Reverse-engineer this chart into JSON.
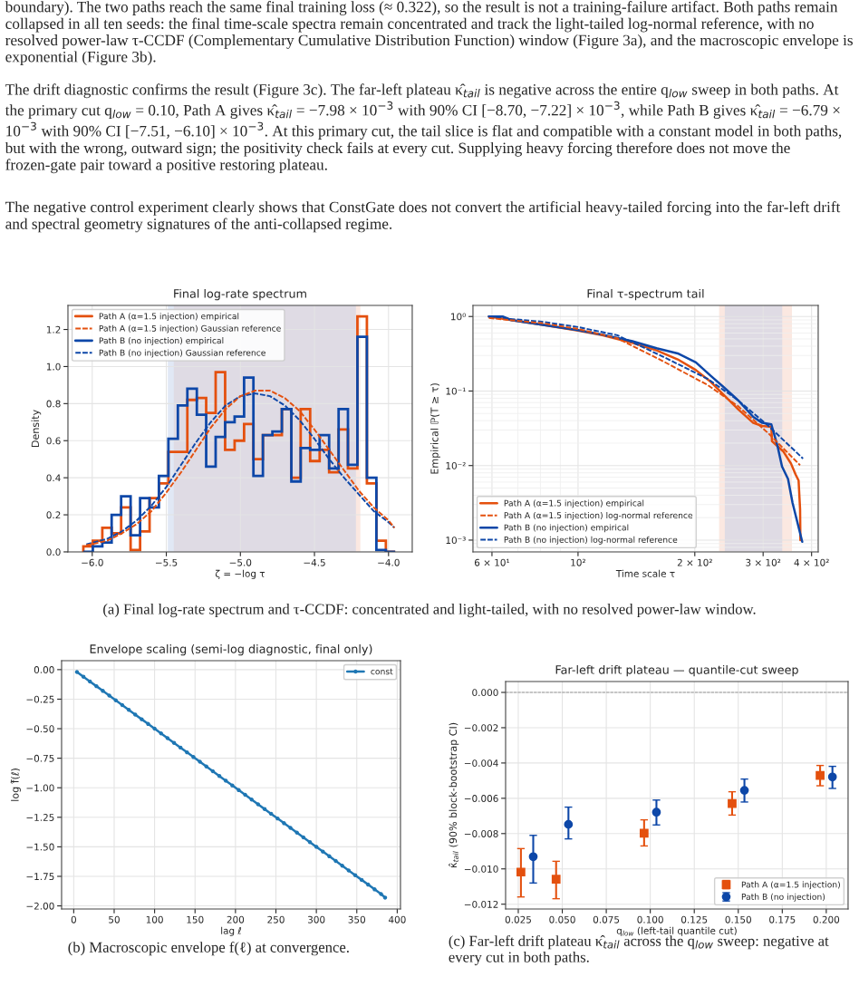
{
  "chart_data": [
    {
      "type": "histogram",
      "title": "Final log-rate spectrum",
      "xlabel": "ζ = −log τ",
      "ylabel": "Density",
      "bins": [
        -6.06,
        -5.996,
        -5.932,
        -5.869,
        -5.805,
        -5.741,
        -5.677,
        -5.613,
        -5.55,
        -5.486,
        -5.422,
        -5.358,
        -5.294,
        -5.231,
        -5.167,
        -5.103,
        -5.039,
        -4.975,
        -4.912,
        -4.848,
        -4.784,
        -4.72,
        -4.656,
        -4.593,
        -4.529,
        -4.465,
        -4.401,
        -4.337,
        -4.274,
        -4.21,
        -4.146,
        -4.082,
        -4.018,
        -3.955
      ],
      "series": [
        {
          "name": "Path A (α=1.5 injection) empirical",
          "color": "#e4500e",
          "values": [
            0.03,
            0.06,
            0.13,
            0.1,
            0.24,
            0.01,
            0.11,
            0.29,
            0.37,
            0.54,
            0.54,
            0.82,
            0.83,
            0.75,
            0.97,
            0.55,
            0.6,
            0.69,
            0.5,
            0.63,
            0.63,
            0.77,
            0.4,
            0.77,
            0.49,
            0.55,
            0.43,
            0.66,
            0.45,
            1.27,
            0.37,
            0.06,
            0
          ]
        },
        {
          "name": "Path A (α=1.5 injection) Gaussian reference",
          "type": "line",
          "line_style": "dashed",
          "color": "#e4500e",
          "x": [
            -6.04,
            -5.9,
            -5.8,
            -5.7,
            -5.6,
            -5.5,
            -5.4,
            -5.3,
            -5.2,
            -5.1,
            -5.0,
            -4.9,
            -4.8,
            -4.7,
            -4.6,
            -4.5,
            -4.4,
            -4.3,
            -4.2,
            -4.1,
            -4.0,
            -3.96
          ],
          "values": [
            0.035,
            0.06,
            0.1,
            0.15,
            0.22,
            0.32,
            0.43,
            0.55,
            0.67,
            0.77,
            0.84,
            0.87,
            0.87,
            0.83,
            0.76,
            0.66,
            0.55,
            0.44,
            0.33,
            0.24,
            0.17,
            0.13
          ]
        },
        {
          "name": "Path B (no injection) empirical",
          "color": "#0d47a8",
          "values": [
            0,
            0.03,
            0.05,
            0.2,
            0.3,
            0.09,
            0.29,
            0.24,
            0.41,
            0.61,
            0.79,
            0.88,
            0.74,
            0.46,
            0.62,
            0.7,
            0.73,
            0.94,
            0.41,
            0.63,
            0.65,
            0.77,
            0.38,
            0.56,
            0.55,
            0.63,
            0.45,
            0.77,
            0.47,
            1.16,
            0.4,
            0.01,
            0
          ]
        },
        {
          "name": "Path B (no injection) Gaussian reference",
          "type": "line",
          "line_style": "dashed",
          "color": "#0d47a8",
          "x": [
            -6.04,
            -5.9,
            -5.8,
            -5.7,
            -5.6,
            -5.5,
            -5.4,
            -5.3,
            -5.2,
            -5.1,
            -5.0,
            -4.9,
            -4.8,
            -4.7,
            -4.6,
            -4.5,
            -4.4,
            -4.3,
            -4.2,
            -4.1,
            -4.0,
            -3.96
          ],
          "values": [
            0.04,
            0.07,
            0.11,
            0.17,
            0.25,
            0.35,
            0.47,
            0.59,
            0.7,
            0.79,
            0.84,
            0.855,
            0.84,
            0.79,
            0.71,
            0.61,
            0.5,
            0.4,
            0.31,
            0.22,
            0.16,
            0.13
          ]
        }
      ],
      "bands": [
        {
          "axis": "x",
          "from": -5.45,
          "to": -4.19,
          "color": "#f6cdbd"
        },
        {
          "axis": "x",
          "from": -5.49,
          "to": -4.22,
          "color": "#bccbe8"
        }
      ],
      "xlim": [
        -6.164,
        -3.84
      ],
      "ylim": [
        0,
        1.33
      ],
      "xticks": [
        {
          "value": -6.0,
          "label": "−6.0"
        },
        {
          "value": -5.5,
          "label": "−5.5"
        },
        {
          "value": -5.0,
          "label": "−5.0"
        },
        {
          "value": -4.5,
          "label": "−4.5"
        },
        {
          "value": -4.0,
          "label": "−4.0"
        }
      ],
      "yticks": [
        {
          "value": 0,
          "label": "0.0"
        },
        0.2,
        0.4,
        0.6,
        0.8,
        {
          "value": 1,
          "label": "1.0"
        },
        1.2
      ],
      "grid": true,
      "legend": "top left",
      "annotations": [
        "boundary). The two paths reach the same final training loss (≈ 0.322), so the result is not a training-failure artifact. Both paths remain collapsed in all ten seeds: the final time-scale spectra remain concentrated and track the light-tailed log-normal reference, with no resolved power-law τ-CCDF (Complementary Cumulative Distribution Function) window (Figure 3a), and the macroscopic envelope is exponential (Figure 3b).",
        "The drift diagnostic confirms the result (Figure 3c). The far-left plateau κ̂$_{tail}$ is negative across the entire q$_{low}$ sweep in both paths. At the primary cut q$_{low}$ = 0.10, Path A gives κ̂$_{tail}$ = −7.98 × 10$^{−3}$ with 90% CI [−8.70, −7.22] × 10$^{−3}$, while Path B gives κ̂$_{tail}$ = −6.79 × 10$^{−3}$ with 90% CI [−7.51, −6.10] × 10$^{−3}$. At this primary cut, the tail slice is flat and compatible with a constant model in both paths, but with the wrong, outward sign; the positivity check fails at every cut. Supplying heavy forcing therefore does not move the frozen-gate pair toward a positive restoring plateau.",
        "The negative control experiment clearly shows that ConstGate does not convert the artificial heavy-tailed forcing into the far-left drift and spectral geometry signatures of the anti-collapsed regime.",
        "(a) Final log-rate spectrum and τ-CCDF: concentrated and light-tailed, with no resolved power-law window."
      ]
    },
    {
      "type": "line",
      "title": "Final τ-spectrum tail",
      "xlabel": "Time scale τ",
      "ylabel": "Empirical ℙ(T ≥ τ)",
      "log": "xy",
      "series": [
        {
          "name": "Path A (α=1.5 injection) empirical",
          "color": "#e4500e",
          "line_style": "solid",
          "x": [
            58.9,
            67.4,
            80.6,
            100,
            115.4,
            138.1,
            159.4,
            180.7,
            201.3,
            220.1,
            236.4,
            258.7,
            282.9,
            298.5,
            315,
            316.2,
            338.5,
            354.1,
            363.7,
            370.3,
            373.6,
            374.3
          ],
          "values": [
            1.0,
            0.894,
            0.777,
            0.645,
            0.561,
            0.444,
            0.351,
            0.266,
            0.191,
            0.132,
            0.0907,
            0.0569,
            0.0374,
            0.034,
            0.0331,
            0.0213,
            0.0154,
            0.0106,
            0.0076,
            0.0063,
            0.0026,
            0.001
          ]
        },
        {
          "name": "Path A (α=1.5 injection) log-normal reference",
          "color": "#e4500e",
          "line_style": "dashed",
          "x": [
            58.9,
            80.6,
            100,
            126.2,
            165.2,
            216.1,
            258.7,
            309.7,
            373.6
          ],
          "values": [
            0.955,
            0.814,
            0.68,
            0.511,
            0.253,
            0.12,
            0.0625,
            0.027,
            0.0101
          ]
        },
        {
          "name": "Path B (no injection) empirical",
          "color": "#0d47a8",
          "line_style": "solid",
          "x": [
            58.9,
            63.9,
            67.4,
            80.6,
            100,
            115.4,
            138.1,
            159.4,
            180.7,
            201.3,
            220.1,
            236.4,
            258.7,
            282.9,
            298.5,
            315,
            326.6,
            335.6,
            347.8,
            357.3,
            378.4
          ],
          "values": [
            1.0,
            1.0,
            0.894,
            0.777,
            0.657,
            0.571,
            0.465,
            0.375,
            0.32,
            0.242,
            0.159,
            0.115,
            0.075,
            0.045,
            0.0374,
            0.0357,
            0.0185,
            0.0097,
            0.0066,
            0.00315,
            0.00095
          ]
        },
        {
          "name": "Path B (no injection) log-normal reference",
          "color": "#0d47a8",
          "line_style": "dashed",
          "x": [
            58.9,
            80.6,
            100,
            126.2,
            165.2,
            216.1,
            258.7,
            309.7,
            380.2
          ],
          "values": [
            0.98,
            0.853,
            0.721,
            0.561,
            0.291,
            0.145,
            0.075,
            0.034,
            0.0124
          ]
        }
      ],
      "bands": [
        {
          "axis": "x",
          "from": 231,
          "to": 356,
          "color": "#f6cdbd"
        },
        {
          "axis": "x",
          "from": 239,
          "to": 336,
          "color": "#bccbe8"
        }
      ],
      "xlim": [
        53.6,
        416
      ],
      "ylim": [
        0.000695,
        1.41
      ],
      "xticks": [
        {
          "value": 60,
          "label": "6 × 10¹"
        },
        {
          "value": 100,
          "label": "10²"
        },
        {
          "value": 200,
          "label": "2 × 10²"
        },
        {
          "value": 300,
          "label": "3 × 10²"
        },
        {
          "value": 400,
          "label": "4 × 10²"
        }
      ],
      "yticks": [
        {
          "value": 0.001,
          "label": "10⁻³"
        },
        {
          "value": 0.01,
          "label": "10⁻²"
        },
        {
          "value": 0.1,
          "label": "10⁻¹"
        },
        {
          "value": 1,
          "label": "10⁰"
        }
      ],
      "grid": true,
      "legend": "bottom left"
    },
    {
      "type": "line",
      "title": "Envelope scaling (semi-log diagnostic, final only)",
      "xlabel": "lag ℓ",
      "ylabel": "log f̂(ℓ)",
      "marker": "circle",
      "series": [
        {
          "name": "const",
          "color": "#1f77b4",
          "x": [
            4,
            12,
            20,
            28,
            36,
            44,
            52,
            60,
            68,
            76,
            84,
            92,
            100,
            108,
            116,
            124,
            132,
            140,
            148,
            156,
            164,
            172,
            180,
            188,
            196,
            204,
            212,
            220,
            228,
            236,
            244,
            252,
            260,
            268,
            276,
            284,
            292,
            300,
            308,
            316,
            324,
            332,
            340,
            348,
            356,
            364,
            372,
            380,
            385
          ],
          "values": [
            -0.02,
            -0.06,
            -0.1,
            -0.14,
            -0.18,
            -0.22,
            -0.26,
            -0.3,
            -0.34,
            -0.38,
            -0.42,
            -0.46,
            -0.5,
            -0.54,
            -0.58,
            -0.62,
            -0.66,
            -0.7,
            -0.74,
            -0.78,
            -0.82,
            -0.86,
            -0.9,
            -0.94,
            -0.98,
            -1.02,
            -1.06,
            -1.1,
            -1.14,
            -1.18,
            -1.22,
            -1.26,
            -1.3,
            -1.34,
            -1.38,
            -1.42,
            -1.46,
            -1.5,
            -1.54,
            -1.58,
            -1.62,
            -1.66,
            -1.7,
            -1.74,
            -1.78,
            -1.82,
            -1.86,
            -1.9,
            -1.93
          ]
        }
      ],
      "xlim": [
        -15,
        404
      ],
      "ylim": [
        -2.026,
        0.076
      ],
      "xticks": [
        0,
        50,
        100,
        150,
        200,
        250,
        300,
        350,
        400
      ],
      "yticks": [
        {
          "value": 0,
          "label": "0.00"
        },
        {
          "value": -0.25,
          "label": "−0.25"
        },
        {
          "value": -0.5,
          "label": "−0.50"
        },
        {
          "value": -0.75,
          "label": "−0.75"
        },
        {
          "value": -1.0,
          "label": "−1.00"
        },
        {
          "value": -1.25,
          "label": "−1.25"
        },
        {
          "value": -1.5,
          "label": "−1.50"
        },
        {
          "value": -1.75,
          "label": "−1.75"
        },
        {
          "value": -2.0,
          "label": "−2.00"
        }
      ],
      "grid": true,
      "legend": "top right",
      "annotations": [
        "(b) Macroscopic envelope f(ℓ) at convergence."
      ]
    },
    {
      "type": "scatter",
      "title": "Far-left drift plateau — quantile-cut sweep",
      "xlabel": "q$_{low}$ (left-tail quantile cut)",
      "ylabel": "κ̂$_{tail}$ (90% block-bootstrap CI)",
      "series": [
        {
          "name": "Path A (α=1.5 injection)",
          "color": "#e4500e",
          "marker": "square",
          "x": [
            0.0265,
            0.0465,
            0.0965,
            0.1465,
            0.1965
          ],
          "values": [
            -0.01018,
            -0.01059,
            -0.00798,
            -0.0063,
            -0.00471
          ],
          "errors": [
            [
              -0.01159,
              -0.00885
            ],
            [
              -0.01169,
              -0.00957
            ],
            [
              -0.0087,
              -0.00722
            ],
            [
              -0.00695,
              -0.00563
            ],
            [
              -0.00529,
              -0.00414
            ]
          ]
        },
        {
          "name": "Path B (no injection)",
          "color": "#0d47a8",
          "marker": "circle",
          "x": [
            0.0335,
            0.0535,
            0.1035,
            0.1535,
            0.2035
          ],
          "values": [
            -0.00931,
            -0.00748,
            -0.00679,
            -0.00555,
            -0.00479
          ],
          "errors": [
            [
              -0.0108,
              -0.0081
            ],
            [
              -0.0083,
              -0.0065
            ],
            [
              -0.00751,
              -0.0061
            ],
            [
              -0.00621,
              -0.00491
            ],
            [
              -0.00544,
              -0.00419
            ]
          ]
        }
      ],
      "ref_lines": [
        {
          "axis": "y",
          "value": 0,
          "color": "#999999",
          "line_style": "dashed"
        }
      ],
      "xlim": [
        0.0178,
        0.2124
      ],
      "ylim": [
        -0.01227,
        0.00062
      ],
      "xticks": [
        0.025,
        {
          "value": 0.05,
          "label": "0.050"
        },
        0.075,
        {
          "value": 0.1,
          "label": "0.100"
        },
        0.125,
        {
          "value": 0.15,
          "label": "0.150"
        },
        0.175,
        {
          "value": 0.2,
          "label": "0.200"
        }
      ],
      "yticks": [
        {
          "value": 0,
          "label": "0.000"
        },
        {
          "value": -0.002,
          "label": "−0.002"
        },
        {
          "value": -0.004,
          "label": "−0.004"
        },
        {
          "value": -0.006,
          "label": "−0.006"
        },
        {
          "value": -0.008,
          "label": "−0.008"
        },
        {
          "value": -0.01,
          "label": "−0.010"
        },
        {
          "value": -0.012,
          "label": "−0.012"
        }
      ],
      "grid": true,
      "legend": "bottom right",
      "annotations": [
        "(c) Far-left drift plateau κ̂$_{tail}$ across the q$_{low}$ sweep: negative at every cut in both paths."
      ]
    }
  ]
}
